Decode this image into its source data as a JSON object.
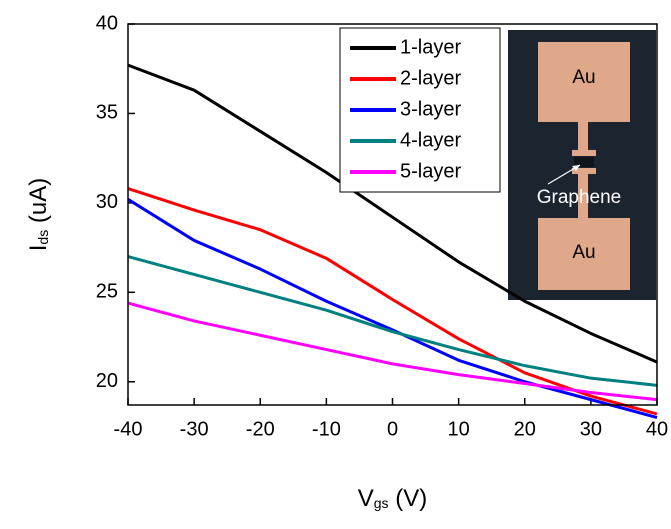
{
  "chart_data": {
    "type": "line",
    "xlabel": [
      "V",
      "gs",
      " (V)"
    ],
    "ylabel": [
      "I",
      "ds",
      " (uA)"
    ],
    "x": [
      -40,
      -30,
      -20,
      -10,
      0,
      10,
      20,
      30,
      40
    ],
    "series": [
      {
        "name": "1-layer",
        "color": "#000000",
        "values": [
          37.7,
          36.3,
          34.0,
          31.7,
          29.2,
          26.7,
          24.5,
          22.7,
          21.1
        ]
      },
      {
        "name": "2-layer",
        "color": "#ff0000",
        "values": [
          30.8,
          29.6,
          28.5,
          26.9,
          24.6,
          22.4,
          20.5,
          19.2,
          18.2
        ]
      },
      {
        "name": "3-layer",
        "color": "#0000ff",
        "values": [
          30.2,
          27.9,
          26.3,
          24.5,
          22.9,
          21.2,
          20.0,
          19.0,
          18.0
        ]
      },
      {
        "name": "4-layer",
        "color": "#008080",
        "values": [
          27.0,
          26.0,
          25.0,
          24.0,
          22.8,
          21.8,
          20.9,
          20.2,
          19.8
        ]
      },
      {
        "name": "5-layer",
        "color": "#ff00ff",
        "values": [
          24.4,
          23.4,
          22.6,
          21.8,
          21.0,
          20.4,
          19.9,
          19.4,
          19.0
        ]
      }
    ],
    "xlim": [
      -40,
      40
    ],
    "xticks": [
      -40,
      -30,
      -20,
      -10,
      0,
      10,
      20,
      30,
      40
    ],
    "ylim": [
      18.7,
      40
    ],
    "yticks": [
      20,
      25,
      30,
      35,
      40
    ],
    "legend": "top-right",
    "inset": {
      "labels": [
        "Au",
        "Graphene",
        "Au"
      ]
    }
  }
}
